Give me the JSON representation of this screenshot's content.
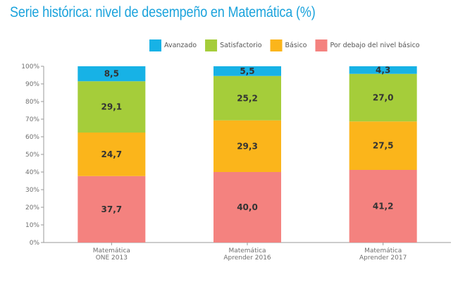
{
  "title": "Serie histórica: nivel de desempeño en Matemática (%)",
  "chart_data": {
    "type": "bar",
    "stacked": true,
    "title": "Serie histórica: nivel de desempeño en Matemática (%)",
    "categories": [
      [
        "Matemática",
        "ONE 2013"
      ],
      [
        "Matemática",
        "Aprender 2016"
      ],
      [
        "Matemática",
        "Aprender 2017"
      ]
    ],
    "series": [
      {
        "name": "Por debajo del nivel básico",
        "color": "#f4827f",
        "values": [
          37.7,
          40.0,
          41.2
        ],
        "labels": [
          "37,7",
          "40,0",
          "41,2"
        ]
      },
      {
        "name": "Básico",
        "color": "#fbb51b",
        "values": [
          24.7,
          29.3,
          27.5
        ],
        "labels": [
          "24,7",
          "29,3",
          "27,5"
        ]
      },
      {
        "name": "Satisfactorio",
        "color": "#a5cd3a",
        "values": [
          29.1,
          25.2,
          27.0
        ],
        "labels": [
          "29,1",
          "25,2",
          "27,0"
        ]
      },
      {
        "name": "Avanzado",
        "color": "#17b2e6",
        "values": [
          8.5,
          5.5,
          4.3
        ],
        "labels": [
          "8,5",
          "5,5",
          "4,3"
        ]
      }
    ],
    "legend_order": [
      "Avanzado",
      "Satisfactorio",
      "Básico",
      "Por debajo del nivel básico"
    ],
    "ylim": [
      0,
      100
    ],
    "yticks": [
      "0%",
      "10%",
      "20%",
      "30%",
      "40%",
      "50%",
      "60%",
      "70%",
      "80%",
      "90%",
      "100%"
    ],
    "grid": false,
    "legend_position": "top"
  }
}
